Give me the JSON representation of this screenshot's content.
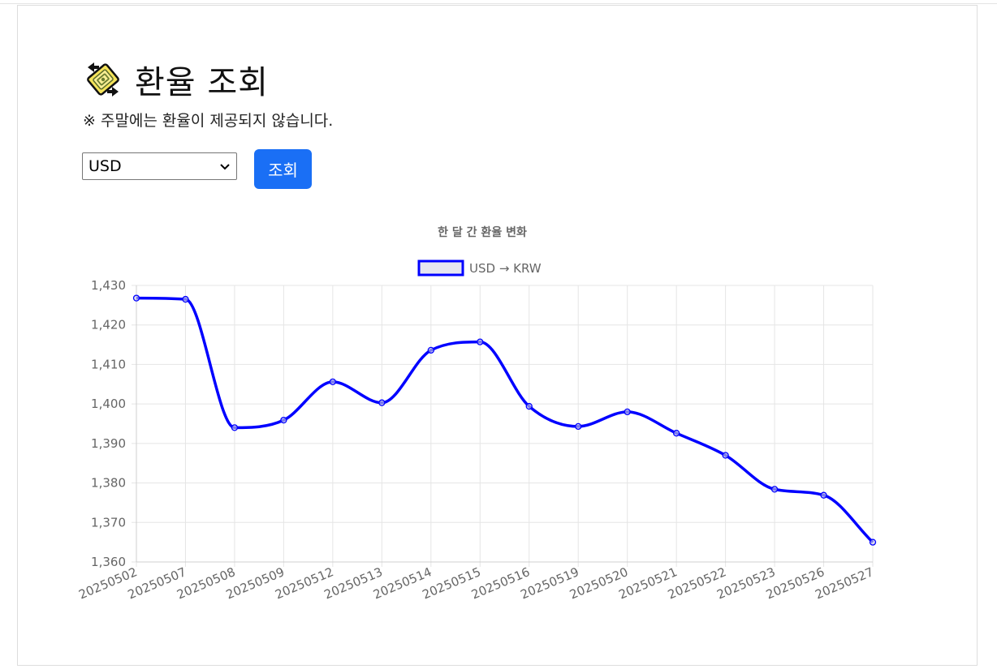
{
  "page": {
    "title": "환율 조회",
    "notice": "※ 주말에는 환율이 제공되지 않습니다.",
    "logo_icon": "coin-exchange-icon"
  },
  "controls": {
    "currency_selected": "USD",
    "search_label": "조회",
    "accent_color": "#1a6ff5"
  },
  "chart_data": {
    "type": "line",
    "title": "한 달 간 환율 변화",
    "xlabel": "",
    "ylabel": "",
    "categories": [
      "20250502",
      "20250507",
      "20250508",
      "20250509",
      "20250512",
      "20250513",
      "20250514",
      "20250515",
      "20250516",
      "20250519",
      "20250520",
      "20250521",
      "20250522",
      "20250523",
      "20250526",
      "20250527"
    ],
    "series": [
      {
        "name": "USD → KRW",
        "color": "#0000ff",
        "values": [
          1426.8,
          1426.5,
          1394.0,
          1395.9,
          1405.6,
          1400.3,
          1413.6,
          1415.7,
          1399.4,
          1394.3,
          1398.0,
          1392.6,
          1387.0,
          1378.4,
          1376.9,
          1365.0
        ]
      }
    ],
    "ylim": [
      1360,
      1430
    ],
    "yticks": [
      1360,
      1370,
      1380,
      1390,
      1400,
      1410,
      1420,
      1430
    ],
    "ytick_labels": [
      "1,360",
      "1,370",
      "1,380",
      "1,390",
      "1,400",
      "1,410",
      "1,420",
      "1,430"
    ],
    "grid": true,
    "legend_position": "top"
  }
}
